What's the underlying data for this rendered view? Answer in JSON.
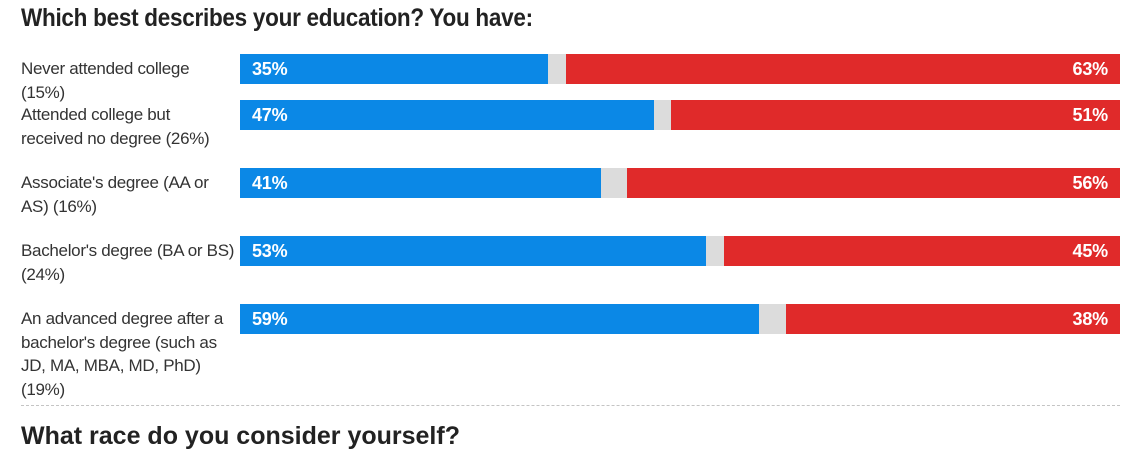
{
  "title": "Which best describes your education? You have:",
  "next_section_title": "What race do you consider yourself?",
  "colors": {
    "democrat_blue": "#0b88e6",
    "other_gray": "#dcdcdc",
    "republican_red": "#e02a2a"
  },
  "chart_data": {
    "type": "bar",
    "orientation": "horizontal-stacked",
    "title": "Which best describes your education? You have:",
    "categories": [
      "Never attended college (15%)",
      "Attended college but received no degree (26%)",
      "Associate's degree (AA or AS) (16%)",
      "Bachelor's degree (BA or BS) (24%)",
      "An advanced degree after a bachelor's degree (such as JD, MA, MBA, MD, PhD) (19%)"
    ],
    "series": [
      {
        "values": [
          35,
          47,
          41,
          53,
          59
        ],
        "labels": [
          "35%",
          "47%",
          "41%",
          "53%",
          "59%"
        ],
        "color": "#0b88e6"
      },
      {
        "values": [
          2,
          2,
          3,
          2,
          3
        ],
        "color": "#dcdcdc"
      },
      {
        "values": [
          63,
          51,
          56,
          45,
          38
        ],
        "labels": [
          "63%",
          "51%",
          "56%",
          "45%",
          "38%"
        ],
        "color": "#e02a2a"
      }
    ],
    "xlim": [
      0,
      100
    ],
    "grid": false,
    "legend": "none"
  }
}
